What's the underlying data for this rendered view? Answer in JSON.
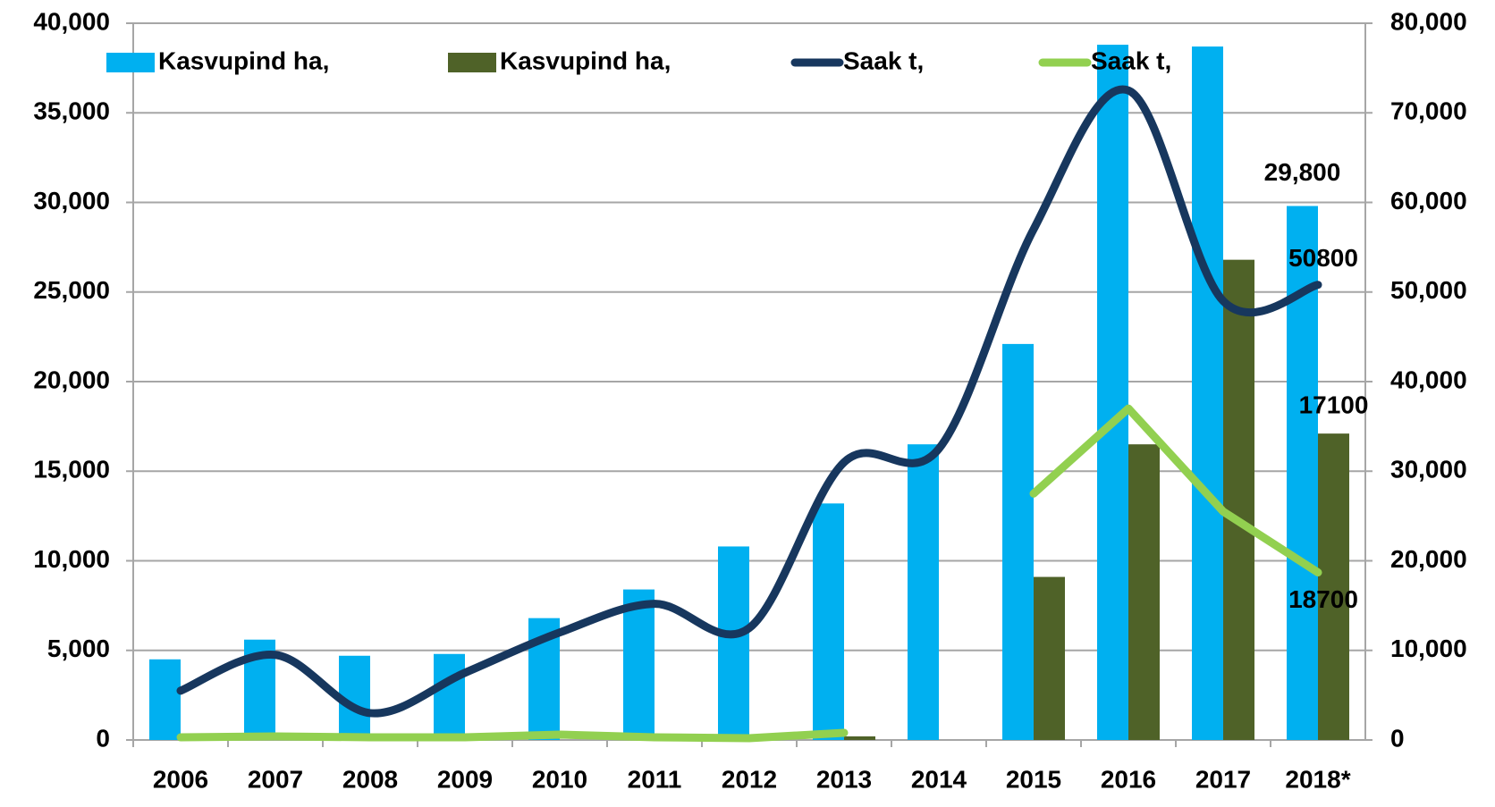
{
  "chart_data": {
    "type": "bar-line",
    "categories": [
      "2006",
      "2007",
      "2008",
      "2009",
      "2010",
      "2011",
      "2012",
      "2013",
      "2014",
      "2015",
      "2016",
      "2017",
      "2018*"
    ],
    "series": [
      {
        "name": "Kasvupind ha,",
        "color": "#00b0f0",
        "kind": "bar",
        "values": [
          4500,
          5600,
          4700,
          4800,
          6800,
          8400,
          10800,
          13200,
          16500,
          22100,
          38800,
          38700,
          29800
        ],
        "value_labels": [
          null,
          null,
          null,
          null,
          null,
          null,
          null,
          null,
          null,
          null,
          null,
          null,
          "29,800"
        ]
      },
      {
        "name": "Kasvupind ha,",
        "color": "#4f6228",
        "kind": "bar",
        "values": [
          null,
          null,
          null,
          null,
          null,
          null,
          null,
          200,
          null,
          9100,
          16500,
          26800,
          17100
        ],
        "label_last": true
      },
      {
        "name": "Saak t,",
        "color": "#17375e",
        "kind": "line",
        "smooth": true,
        "axis": "y2",
        "values": [
          5500,
          9500,
          3000,
          7500,
          12000,
          15200,
          12500,
          31000,
          32500,
          57000,
          72500,
          49000,
          50800
        ],
        "label_last": true
      },
      {
        "name": "Saak t,",
        "color": "#92d050",
        "kind": "line",
        "smooth": false,
        "axis": "y2",
        "values": [
          300,
          400,
          300,
          300,
          600,
          300,
          200,
          800,
          null,
          27500,
          37000,
          25500,
          18700
        ],
        "label_last": true
      }
    ],
    "ylim": [
      0,
      40000
    ],
    "yticks": [
      0,
      {
        "value": 5000,
        "label": "5,000"
      },
      {
        "value": 10000,
        "label": "10,000"
      },
      {
        "value": 15000,
        "label": "15,000"
      },
      {
        "value": 20000,
        "label": "20,000"
      },
      {
        "value": 25000,
        "label": "25,000"
      },
      {
        "value": 30000,
        "label": "30,000"
      },
      {
        "value": 35000,
        "label": "35,000"
      },
      {
        "value": 40000,
        "label": "40,000"
      }
    ],
    "y2lim": [
      0,
      80000
    ],
    "y2ticks": [
      0,
      {
        "value": 10000,
        "label": "10,000"
      },
      {
        "value": 20000,
        "label": "20,000"
      },
      {
        "value": 30000,
        "label": "30,000"
      },
      {
        "value": 40000,
        "label": "40,000"
      },
      {
        "value": 50000,
        "label": "50,000"
      },
      {
        "value": 60000,
        "label": "60,000"
      },
      {
        "value": 70000,
        "label": "70,000"
      },
      {
        "value": 80000,
        "label": "80,000"
      }
    ],
    "grid": true,
    "legend": "top"
  }
}
